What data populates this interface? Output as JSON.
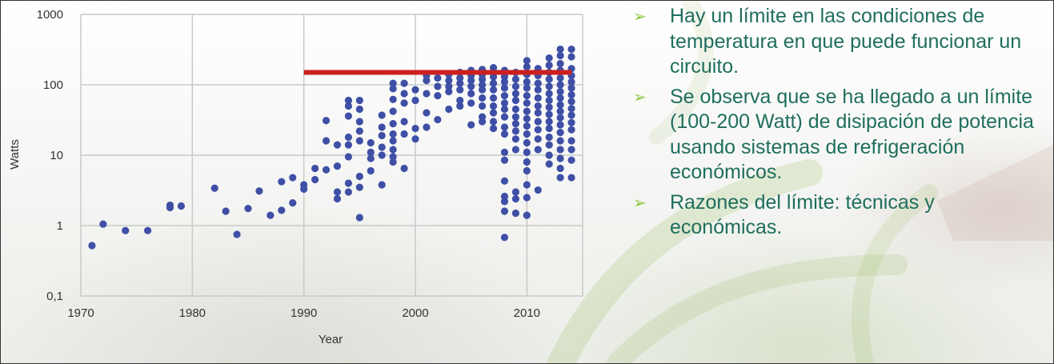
{
  "colors": {
    "point": "#3f4fa6",
    "limit_line": "#cc1f1f",
    "grid": "#c9c9c9",
    "bullet_text": "#1f6e5e",
    "bullet_marker": "#8cc63f"
  },
  "bullets": [
    {
      "marker": "➢",
      "text": "Hay un límite en las condiciones de temperatura en que puede funcionar un circuito."
    },
    {
      "marker": "➢",
      "text": "Se observa que se ha llegado a un límite (100-200 Watt) de disipación de potencia usando sistemas de refrigeración económicos."
    },
    {
      "marker": "➢",
      "text": "Razones del límite: técnicas y económicas."
    }
  ],
  "chart_data": {
    "type": "scatter",
    "title": "",
    "xlabel": "Year",
    "ylabel": "Watts",
    "yscale": "log",
    "xlim": [
      1970,
      2015
    ],
    "ylim": [
      0.1,
      1000
    ],
    "xticks": [
      1970,
      1980,
      1990,
      2000,
      2010
    ],
    "xtick_labels": [
      "1970",
      "1980",
      "1990",
      "2000",
      "2010"
    ],
    "yticks": [
      0.1,
      1,
      10,
      100,
      1000
    ],
    "ytick_labels": [
      "0,1",
      "1",
      "10",
      "100",
      "1000"
    ],
    "grid": true,
    "reference_line": {
      "x_start": 1990,
      "x_end": 2014,
      "y": 150
    },
    "series": [
      {
        "points": [
          [
            1971,
            0.52
          ],
          [
            1972,
            1.05
          ],
          [
            1974,
            0.85
          ],
          [
            1976,
            0.85
          ],
          [
            1978,
            1.8
          ],
          [
            1978,
            1.95
          ],
          [
            1979,
            1.9
          ],
          [
            1982,
            3.4
          ],
          [
            1983,
            1.6
          ],
          [
            1984,
            0.75
          ],
          [
            1985,
            1.75
          ],
          [
            1986,
            3.1
          ],
          [
            1987,
            1.4
          ],
          [
            1988,
            1.65
          ],
          [
            1988,
            4.2
          ],
          [
            1989,
            4.8
          ],
          [
            1989,
            2.1
          ],
          [
            1990,
            3.3
          ],
          [
            1990,
            3.8
          ],
          [
            1991,
            6.5
          ],
          [
            1991,
            4.5
          ],
          [
            1992,
            31
          ],
          [
            1992,
            16
          ],
          [
            1992,
            6.2
          ],
          [
            1993,
            14
          ],
          [
            1993,
            7
          ],
          [
            1993,
            3
          ],
          [
            1993,
            2.4
          ],
          [
            1994,
            60
          ],
          [
            1994,
            50
          ],
          [
            1994,
            36
          ],
          [
            1994,
            18
          ],
          [
            1994,
            14
          ],
          [
            1994,
            9.5
          ],
          [
            1994,
            4
          ],
          [
            1994,
            3
          ],
          [
            1995,
            60
          ],
          [
            1995,
            45
          ],
          [
            1995,
            30
          ],
          [
            1995,
            22
          ],
          [
            1995,
            16
          ],
          [
            1995,
            5
          ],
          [
            1995,
            3.5
          ],
          [
            1995,
            1.3
          ],
          [
            1996,
            15
          ],
          [
            1996,
            11
          ],
          [
            1996,
            9
          ],
          [
            1996,
            6
          ],
          [
            1997,
            37
          ],
          [
            1997,
            25
          ],
          [
            1997,
            19
          ],
          [
            1997,
            13
          ],
          [
            1997,
            10
          ],
          [
            1997,
            3.8
          ],
          [
            1998,
            105
          ],
          [
            1998,
            88
          ],
          [
            1998,
            62
          ],
          [
            1998,
            42
          ],
          [
            1998,
            28
          ],
          [
            1998,
            20
          ],
          [
            1998,
            16
          ],
          [
            1998,
            12
          ],
          [
            1998,
            9.5
          ],
          [
            1998,
            8
          ],
          [
            1999,
            105
          ],
          [
            1999,
            75
          ],
          [
            1999,
            55
          ],
          [
            1999,
            30
          ],
          [
            1999,
            20
          ],
          [
            1999,
            6.5
          ],
          [
            2000,
            85
          ],
          [
            2000,
            60
          ],
          [
            2000,
            24
          ],
          [
            2000,
            17
          ],
          [
            2001,
            135
          ],
          [
            2001,
            115
          ],
          [
            2001,
            75
          ],
          [
            2001,
            40
          ],
          [
            2001,
            25
          ],
          [
            2002,
            125
          ],
          [
            2002,
            95
          ],
          [
            2002,
            70
          ],
          [
            2002,
            32
          ],
          [
            2003,
            140
          ],
          [
            2003,
            115
          ],
          [
            2003,
            95
          ],
          [
            2003,
            80
          ],
          [
            2003,
            45
          ],
          [
            2004,
            150
          ],
          [
            2004,
            125
          ],
          [
            2004,
            105
          ],
          [
            2004,
            85
          ],
          [
            2004,
            60
          ],
          [
            2004,
            50
          ],
          [
            2005,
            160
          ],
          [
            2005,
            135
          ],
          [
            2005,
            115
          ],
          [
            2005,
            95
          ],
          [
            2005,
            75
          ],
          [
            2005,
            55
          ],
          [
            2005,
            27
          ],
          [
            2006,
            165
          ],
          [
            2006,
            140
          ],
          [
            2006,
            120
          ],
          [
            2006,
            100
          ],
          [
            2006,
            85
          ],
          [
            2006,
            65
          ],
          [
            2006,
            50
          ],
          [
            2006,
            35
          ],
          [
            2006,
            30
          ],
          [
            2007,
            175
          ],
          [
            2007,
            150
          ],
          [
            2007,
            130
          ],
          [
            2007,
            105
          ],
          [
            2007,
            85
          ],
          [
            2007,
            65
          ],
          [
            2007,
            50
          ],
          [
            2007,
            40
          ],
          [
            2007,
            30
          ],
          [
            2007,
            24
          ],
          [
            2008,
            160
          ],
          [
            2008,
            130
          ],
          [
            2008,
            110
          ],
          [
            2008,
            90
          ],
          [
            2008,
            70
          ],
          [
            2008,
            55
          ],
          [
            2008,
            45
          ],
          [
            2008,
            35
          ],
          [
            2008,
            25
          ],
          [
            2008,
            20
          ],
          [
            2008,
            11
          ],
          [
            2008,
            8.5
          ],
          [
            2008,
            4.3
          ],
          [
            2008,
            2.6
          ],
          [
            2008,
            2.2
          ],
          [
            2008,
            1.6
          ],
          [
            2008,
            0.68
          ],
          [
            2009,
            150
          ],
          [
            2009,
            120
          ],
          [
            2009,
            95
          ],
          [
            2009,
            75
          ],
          [
            2009,
            60
          ],
          [
            2009,
            45
          ],
          [
            2009,
            35
          ],
          [
            2009,
            28
          ],
          [
            2009,
            22
          ],
          [
            2009,
            17
          ],
          [
            2009,
            12
          ],
          [
            2009,
            3
          ],
          [
            2009,
            2.4
          ],
          [
            2009,
            1.5
          ],
          [
            2010,
            220
          ],
          [
            2010,
            180
          ],
          [
            2010,
            140
          ],
          [
            2010,
            110
          ],
          [
            2010,
            90
          ],
          [
            2010,
            70
          ],
          [
            2010,
            55
          ],
          [
            2010,
            42
          ],
          [
            2010,
            33
          ],
          [
            2010,
            26
          ],
          [
            2010,
            20
          ],
          [
            2010,
            15
          ],
          [
            2010,
            11
          ],
          [
            2010,
            8
          ],
          [
            2010,
            6
          ],
          [
            2010,
            3.8
          ],
          [
            2010,
            2.5
          ],
          [
            2010,
            1.4
          ],
          [
            2011,
            170
          ],
          [
            2011,
            135
          ],
          [
            2011,
            105
          ],
          [
            2011,
            85
          ],
          [
            2011,
            65
          ],
          [
            2011,
            50
          ],
          [
            2011,
            40
          ],
          [
            2011,
            30
          ],
          [
            2011,
            23
          ],
          [
            2011,
            17
          ],
          [
            2011,
            12
          ],
          [
            2011,
            3.2
          ],
          [
            2012,
            240
          ],
          [
            2012,
            190
          ],
          [
            2012,
            150
          ],
          [
            2012,
            120
          ],
          [
            2012,
            95
          ],
          [
            2012,
            75
          ],
          [
            2012,
            60
          ],
          [
            2012,
            48
          ],
          [
            2012,
            38
          ],
          [
            2012,
            30
          ],
          [
            2012,
            24
          ],
          [
            2012,
            18
          ],
          [
            2012,
            14
          ],
          [
            2012,
            10
          ],
          [
            2012,
            7.5
          ],
          [
            2013,
            320
          ],
          [
            2013,
            260
          ],
          [
            2013,
            200
          ],
          [
            2013,
            160
          ],
          [
            2013,
            125
          ],
          [
            2013,
            100
          ],
          [
            2013,
            80
          ],
          [
            2013,
            65
          ],
          [
            2013,
            52
          ],
          [
            2013,
            42
          ],
          [
            2013,
            34
          ],
          [
            2013,
            27
          ],
          [
            2013,
            21
          ],
          [
            2013,
            16
          ],
          [
            2013,
            12
          ],
          [
            2013,
            9
          ],
          [
            2013,
            6.5
          ],
          [
            2013,
            4.8
          ],
          [
            2014,
            320
          ],
          [
            2014,
            250
          ],
          [
            2014,
            170
          ],
          [
            2014,
            135
          ],
          [
            2014,
            110
          ],
          [
            2014,
            90
          ],
          [
            2014,
            72
          ],
          [
            2014,
            58
          ],
          [
            2014,
            46
          ],
          [
            2014,
            37
          ],
          [
            2014,
            29
          ],
          [
            2014,
            23
          ],
          [
            2014,
            16
          ],
          [
            2014,
            12
          ],
          [
            2014,
            8.5
          ],
          [
            2014,
            4.8
          ]
        ]
      }
    ]
  }
}
